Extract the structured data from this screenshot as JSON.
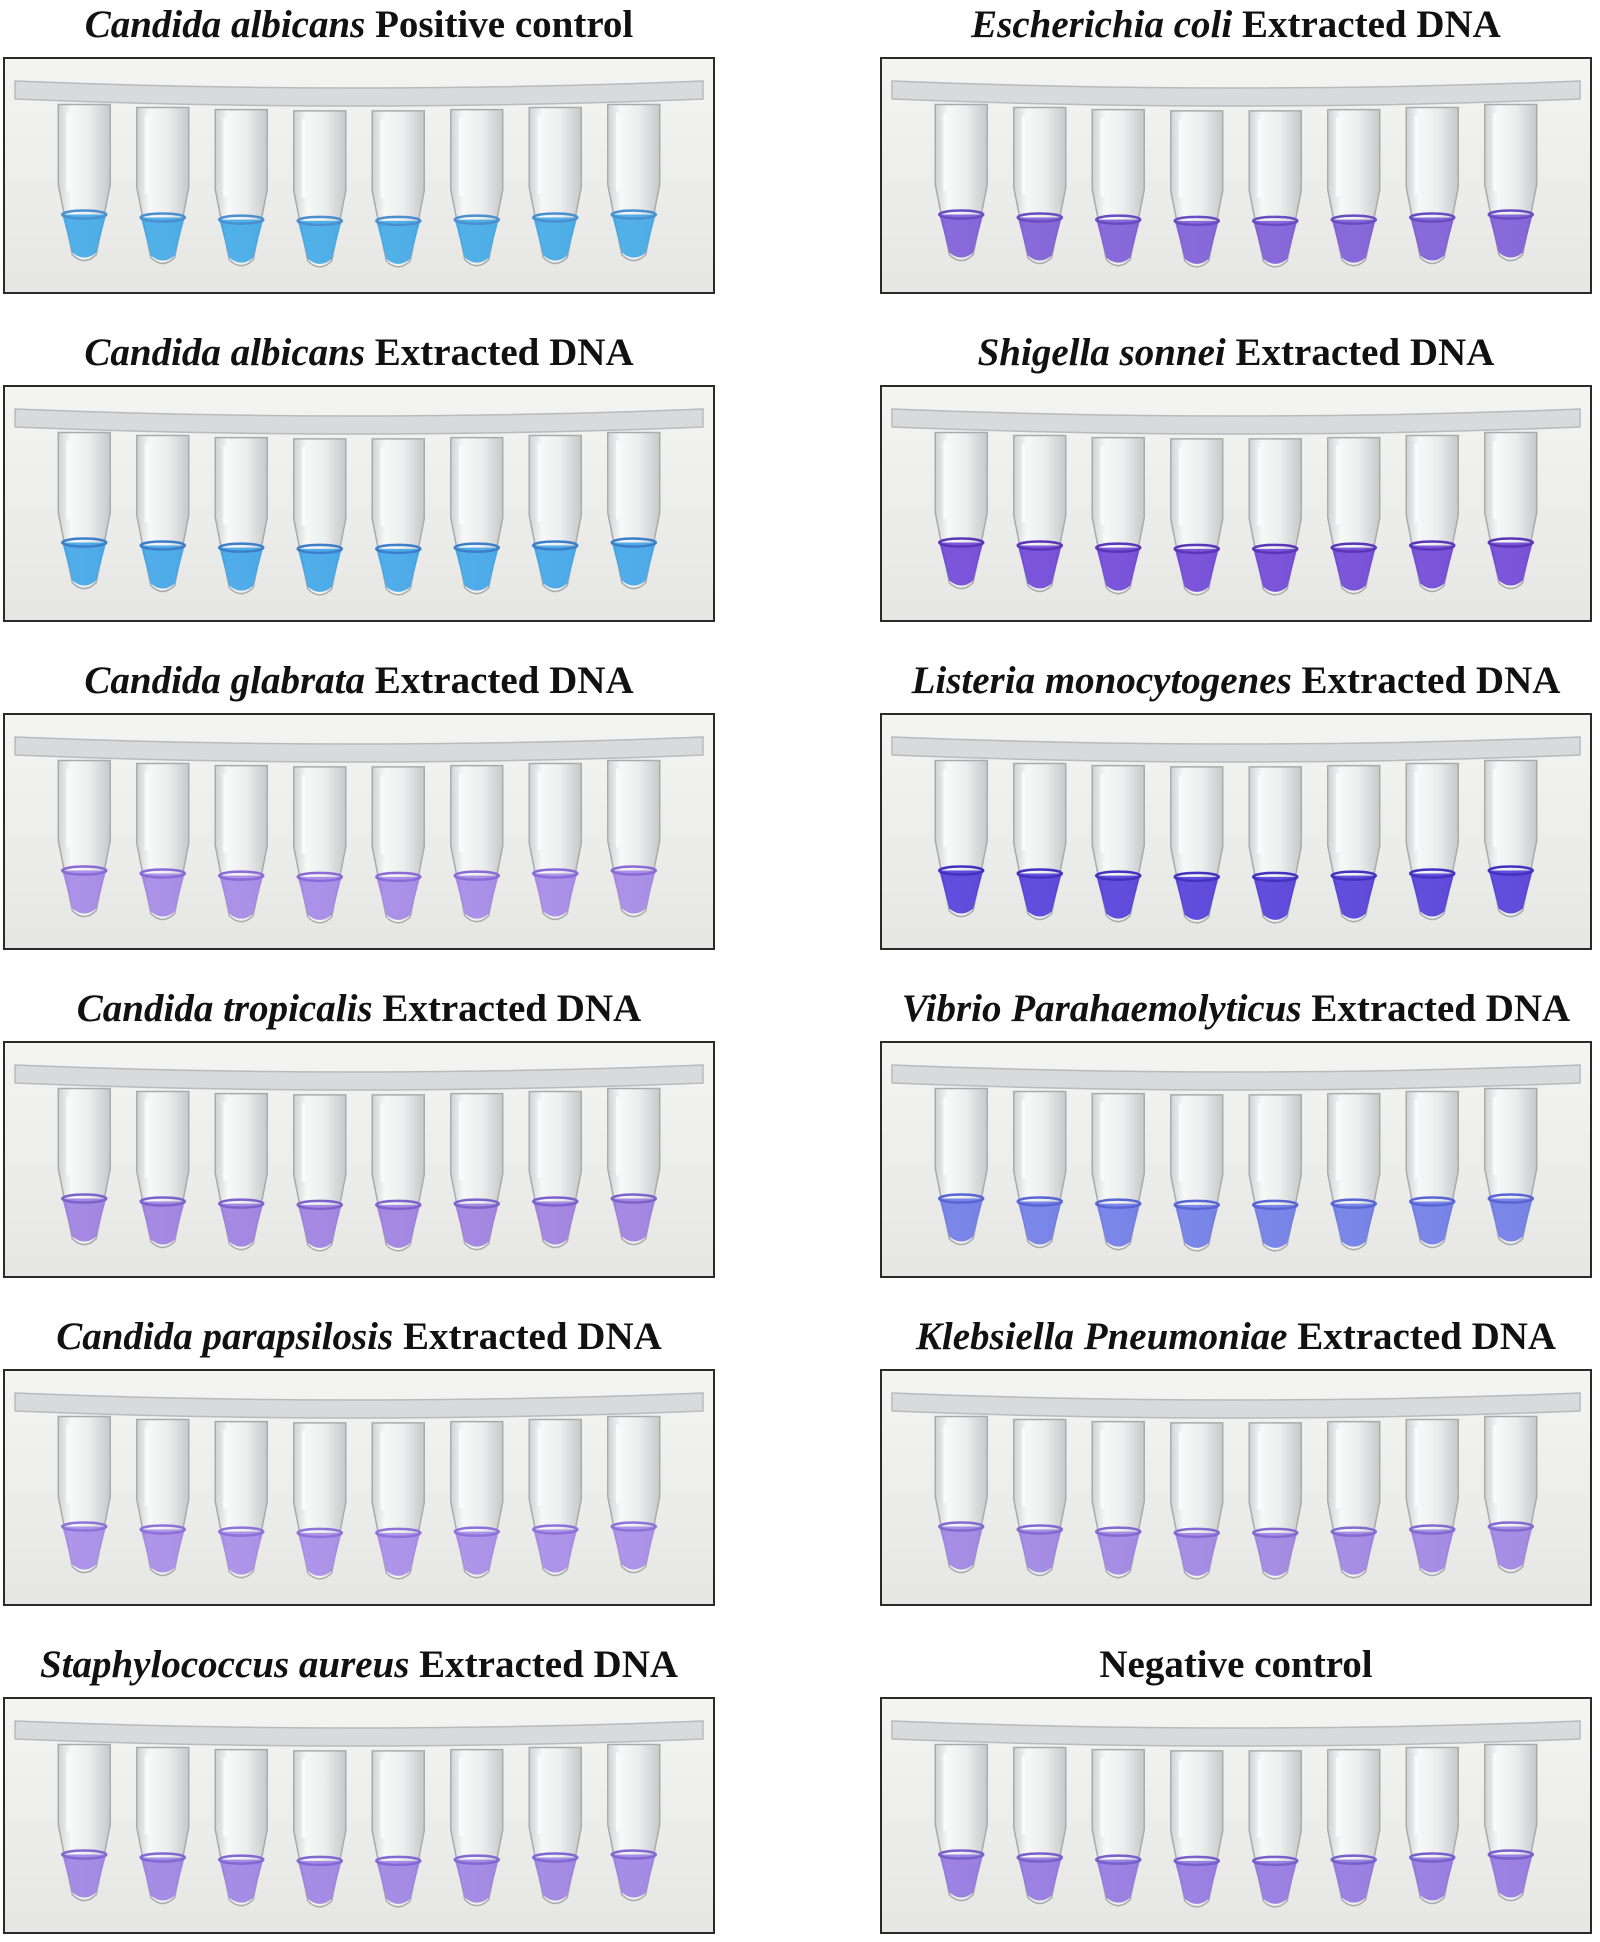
{
  "panels": [
    {
      "species": "Candida albicans",
      "suffix": "Positive control",
      "color": "#3aa6e6",
      "meniscus": "#4a8fcf"
    },
    {
      "species": "Escherichia coli",
      "suffix": "Extracted DNA",
      "color": "#7a57d6",
      "meniscus": "#6a4cc2"
    },
    {
      "species": "Candida albicans",
      "suffix": "Extracted DNA",
      "color": "#3aa3e8",
      "meniscus": "#3c7fc8"
    },
    {
      "species": "Shigella sonnei",
      "suffix": "Extracted DNA",
      "color": "#6a3fd6",
      "meniscus": "#5a35b8"
    },
    {
      "species": "Candida glabrata",
      "suffix": "Extracted DNA",
      "color": "#a283e6",
      "meniscus": "#8a6ad6"
    },
    {
      "species": "Listeria monocytogenes",
      "suffix": "Extracted DNA",
      "color": "#4e35d8",
      "meniscus": "#4530c0"
    },
    {
      "species": "Candida tropicalis",
      "suffix": "Extracted DNA",
      "color": "#9a7ae0",
      "meniscus": "#7e62cc"
    },
    {
      "species": "Vibrio Parahaemolyticus",
      "suffix": "Extracted DNA",
      "color": "#6a78e6",
      "meniscus": "#5865d4"
    },
    {
      "species": "Candida parapsilosis",
      "suffix": "Extracted DNA",
      "color": "#a487e8",
      "meniscus": "#8e72da"
    },
    {
      "species": "Klebsiella Pneumoniae",
      "suffix": "Extracted DNA",
      "color": "#9b80e2",
      "meniscus": "#836ad0"
    },
    {
      "species": "Staphylococcus aureus",
      "suffix": "Extracted DNA",
      "color": "#9a7ee4",
      "meniscus": "#8268d2"
    },
    {
      "species": "",
      "suffix": "Negative control",
      "color": "#8e72e0",
      "meniscus": "#7860cc"
    }
  ]
}
